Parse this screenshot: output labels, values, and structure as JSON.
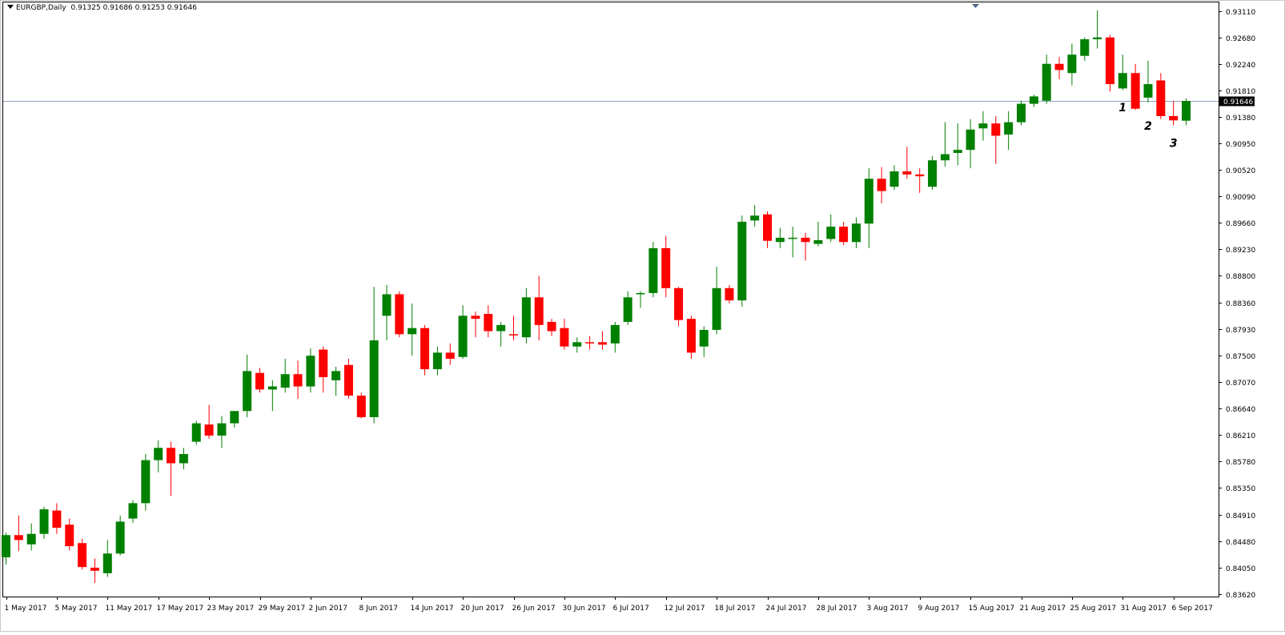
{
  "symbol_label": "EURGBP,Daily",
  "ohlc_label": "0.91325 0.91686 0.91253 0.91646",
  "chart_data": {
    "type": "candlestick",
    "title": "EURGBP,Daily",
    "header_values": "0.91325 0.91686 0.91253 0.91646",
    "ylim": [
      0.8358,
      0.9325
    ],
    "y_ticks": [
      "0.93110",
      "0.92680",
      "0.92240",
      "0.91810",
      "0.91380",
      "0.90950",
      "0.90520",
      "0.90090",
      "0.89660",
      "0.89230",
      "0.88800",
      "0.88360",
      "0.87930",
      "0.87500",
      "0.87070",
      "0.86640",
      "0.86210",
      "0.85780",
      "0.85350",
      "0.84910",
      "0.84480",
      "0.84050",
      "0.83620"
    ],
    "x_ticks": [
      {
        "label": "1 May 2017",
        "index": 0
      },
      {
        "label": "5 May 2017",
        "index": 4
      },
      {
        "label": "11 May 2017",
        "index": 8
      },
      {
        "label": "17 May 2017",
        "index": 12
      },
      {
        "label": "23 May 2017",
        "index": 16
      },
      {
        "label": "29 May 2017",
        "index": 20
      },
      {
        "label": "2 Jun 2017",
        "index": 24
      },
      {
        "label": "8 Jun 2017",
        "index": 28
      },
      {
        "label": "14 Jun 2017",
        "index": 32
      },
      {
        "label": "20 Jun 2017",
        "index": 36
      },
      {
        "label": "26 Jun 2017",
        "index": 40
      },
      {
        "label": "30 Jun 2017",
        "index": 44
      },
      {
        "label": "6 Jul 2017",
        "index": 48
      },
      {
        "label": "12 Jul 2017",
        "index": 52
      },
      {
        "label": "18 Jul 2017",
        "index": 56
      },
      {
        "label": "24 Jul 2017",
        "index": 60
      },
      {
        "label": "28 Jul 2017",
        "index": 64
      },
      {
        "label": "3 Aug 2017",
        "index": 68
      },
      {
        "label": "9 Aug 2017",
        "index": 72
      },
      {
        "label": "15 Aug 2017",
        "index": 76
      },
      {
        "label": "21 Aug 2017",
        "index": 80
      },
      {
        "label": "25 Aug 2017",
        "index": 84
      },
      {
        "label": "31 Aug 2017",
        "index": 88
      },
      {
        "label": "6 Sep 2017",
        "index": 92
      }
    ],
    "current_price": "0.91646",
    "current_price_value": 0.91646,
    "bull_color": "#008000",
    "bear_color": "#ff0000",
    "price_line_color": "#8fa3bf",
    "candles": [
      [
        0.8422,
        0.8462,
        0.841,
        0.8458
      ],
      [
        0.8458,
        0.849,
        0.8432,
        0.845
      ],
      [
        0.8443,
        0.8477,
        0.8433,
        0.846
      ],
      [
        0.846,
        0.8504,
        0.8452,
        0.85
      ],
      [
        0.8498,
        0.851,
        0.846,
        0.847
      ],
      [
        0.8475,
        0.8485,
        0.8433,
        0.844
      ],
      [
        0.8445,
        0.8452,
        0.8402,
        0.8406
      ],
      [
        0.8405,
        0.842,
        0.838,
        0.84
      ],
      [
        0.8396,
        0.845,
        0.839,
        0.8428
      ],
      [
        0.8428,
        0.849,
        0.8425,
        0.848
      ],
      [
        0.8485,
        0.8515,
        0.8478,
        0.851
      ],
      [
        0.851,
        0.859,
        0.8498,
        0.858
      ],
      [
        0.858,
        0.8612,
        0.856,
        0.86
      ],
      [
        0.86,
        0.861,
        0.8522,
        0.8575
      ],
      [
        0.8575,
        0.86,
        0.8565,
        0.859
      ],
      [
        0.861,
        0.8644,
        0.8605,
        0.864
      ],
      [
        0.8638,
        0.867,
        0.8615,
        0.862
      ],
      [
        0.862,
        0.8652,
        0.86,
        0.864
      ],
      [
        0.864,
        0.866,
        0.8633,
        0.866
      ],
      [
        0.866,
        0.8752,
        0.865,
        0.8725
      ],
      [
        0.8722,
        0.873,
        0.869,
        0.8695
      ],
      [
        0.8695,
        0.871,
        0.866,
        0.87
      ],
      [
        0.8698,
        0.8745,
        0.869,
        0.872
      ],
      [
        0.872,
        0.8742,
        0.868,
        0.87
      ],
      [
        0.87,
        0.8762,
        0.869,
        0.875
      ],
      [
        0.876,
        0.8765,
        0.869,
        0.8715
      ],
      [
        0.871,
        0.8732,
        0.8685,
        0.8725
      ],
      [
        0.8735,
        0.8745,
        0.868,
        0.8685
      ],
      [
        0.8685,
        0.869,
        0.8648,
        0.865
      ],
      [
        0.865,
        0.8862,
        0.864,
        0.8775
      ],
      [
        0.8815,
        0.8865,
        0.8775,
        0.885
      ],
      [
        0.885,
        0.8855,
        0.878,
        0.8785
      ],
      [
        0.8785,
        0.8835,
        0.875,
        0.8795
      ],
      [
        0.8795,
        0.88,
        0.8718,
        0.8728
      ],
      [
        0.8728,
        0.8765,
        0.8718,
        0.8755
      ],
      [
        0.8755,
        0.877,
        0.8735,
        0.8745
      ],
      [
        0.8748,
        0.8832,
        0.8745,
        0.8815
      ],
      [
        0.8815,
        0.8822,
        0.878,
        0.881
      ],
      [
        0.8818,
        0.8832,
        0.878,
        0.879
      ],
      [
        0.879,
        0.8805,
        0.8765,
        0.88
      ],
      [
        0.8785,
        0.8815,
        0.8775,
        0.8783
      ],
      [
        0.878,
        0.886,
        0.877,
        0.8845
      ],
      [
        0.8845,
        0.888,
        0.8775,
        0.88
      ],
      [
        0.8805,
        0.881,
        0.8782,
        0.879
      ],
      [
        0.8795,
        0.881,
        0.876,
        0.8765
      ],
      [
        0.8765,
        0.878,
        0.8755,
        0.8772
      ],
      [
        0.8772,
        0.8782,
        0.876,
        0.877
      ],
      [
        0.8772,
        0.879,
        0.876,
        0.8768
      ],
      [
        0.877,
        0.8805,
        0.8755,
        0.88
      ],
      [
        0.8805,
        0.8855,
        0.88,
        0.8845
      ],
      [
        0.885,
        0.8855,
        0.8828,
        0.8852
      ],
      [
        0.8852,
        0.8935,
        0.8845,
        0.8925
      ],
      [
        0.8925,
        0.8945,
        0.8845,
        0.886
      ],
      [
        0.886,
        0.8862,
        0.8798,
        0.8808
      ],
      [
        0.881,
        0.8815,
        0.8745,
        0.8755
      ],
      [
        0.8765,
        0.8798,
        0.8748,
        0.8792
      ],
      [
        0.8792,
        0.8895,
        0.8785,
        0.886
      ],
      [
        0.886,
        0.8865,
        0.8835,
        0.884
      ],
      [
        0.884,
        0.8978,
        0.883,
        0.8968
      ],
      [
        0.897,
        0.8995,
        0.896,
        0.8978
      ],
      [
        0.898,
        0.8985,
        0.8925,
        0.8937
      ],
      [
        0.8935,
        0.8958,
        0.8925,
        0.8942
      ],
      [
        0.8942,
        0.896,
        0.891,
        0.8942
      ],
      [
        0.8942,
        0.895,
        0.8905,
        0.8935
      ],
      [
        0.8932,
        0.8968,
        0.8928,
        0.8938
      ],
      [
        0.894,
        0.898,
        0.8935,
        0.896
      ],
      [
        0.896,
        0.8968,
        0.893,
        0.8935
      ],
      [
        0.8935,
        0.8975,
        0.8925,
        0.8965
      ],
      [
        0.8965,
        0.9055,
        0.8925,
        0.9038
      ],
      [
        0.9038,
        0.9057,
        0.8998,
        0.9018
      ],
      [
        0.9025,
        0.906,
        0.902,
        0.905
      ],
      [
        0.905,
        0.909,
        0.9038,
        0.9045
      ],
      [
        0.9045,
        0.9055,
        0.9015,
        0.9042
      ],
      [
        0.9025,
        0.9075,
        0.902,
        0.9068
      ],
      [
        0.9068,
        0.913,
        0.9058,
        0.9078
      ],
      [
        0.908,
        0.9128,
        0.906,
        0.9085
      ],
      [
        0.9085,
        0.9135,
        0.9055,
        0.9118
      ],
      [
        0.912,
        0.9148,
        0.91,
        0.9128
      ],
      [
        0.9128,
        0.914,
        0.9062,
        0.9108
      ],
      [
        0.911,
        0.9148,
        0.9085,
        0.913
      ],
      [
        0.913,
        0.9165,
        0.9125,
        0.916
      ],
      [
        0.916,
        0.9175,
        0.9155,
        0.9172
      ],
      [
        0.9165,
        0.924,
        0.916,
        0.9225
      ],
      [
        0.9225,
        0.9236,
        0.92,
        0.9215
      ],
      [
        0.921,
        0.9258,
        0.919,
        0.924
      ],
      [
        0.9238,
        0.9268,
        0.923,
        0.9265
      ],
      [
        0.9265,
        0.9312,
        0.925,
        0.9268
      ],
      [
        0.9268,
        0.9272,
        0.918,
        0.9192
      ],
      [
        0.9185,
        0.924,
        0.9182,
        0.921
      ],
      [
        0.921,
        0.9225,
        0.915,
        0.9152
      ],
      [
        0.917,
        0.923,
        0.9162,
        0.9192
      ],
      [
        0.9198,
        0.921,
        0.9135,
        0.914
      ],
      [
        0.914,
        0.9165,
        0.9125,
        0.9133
      ],
      [
        0.91325,
        0.91686,
        0.91253,
        0.91646
      ]
    ],
    "annotations": [
      {
        "text": "1",
        "index": 88,
        "price": 0.9148
      },
      {
        "text": "2",
        "index": 90,
        "price": 0.9118
      },
      {
        "text": "3",
        "index": 92,
        "price": 0.909
      }
    ]
  }
}
